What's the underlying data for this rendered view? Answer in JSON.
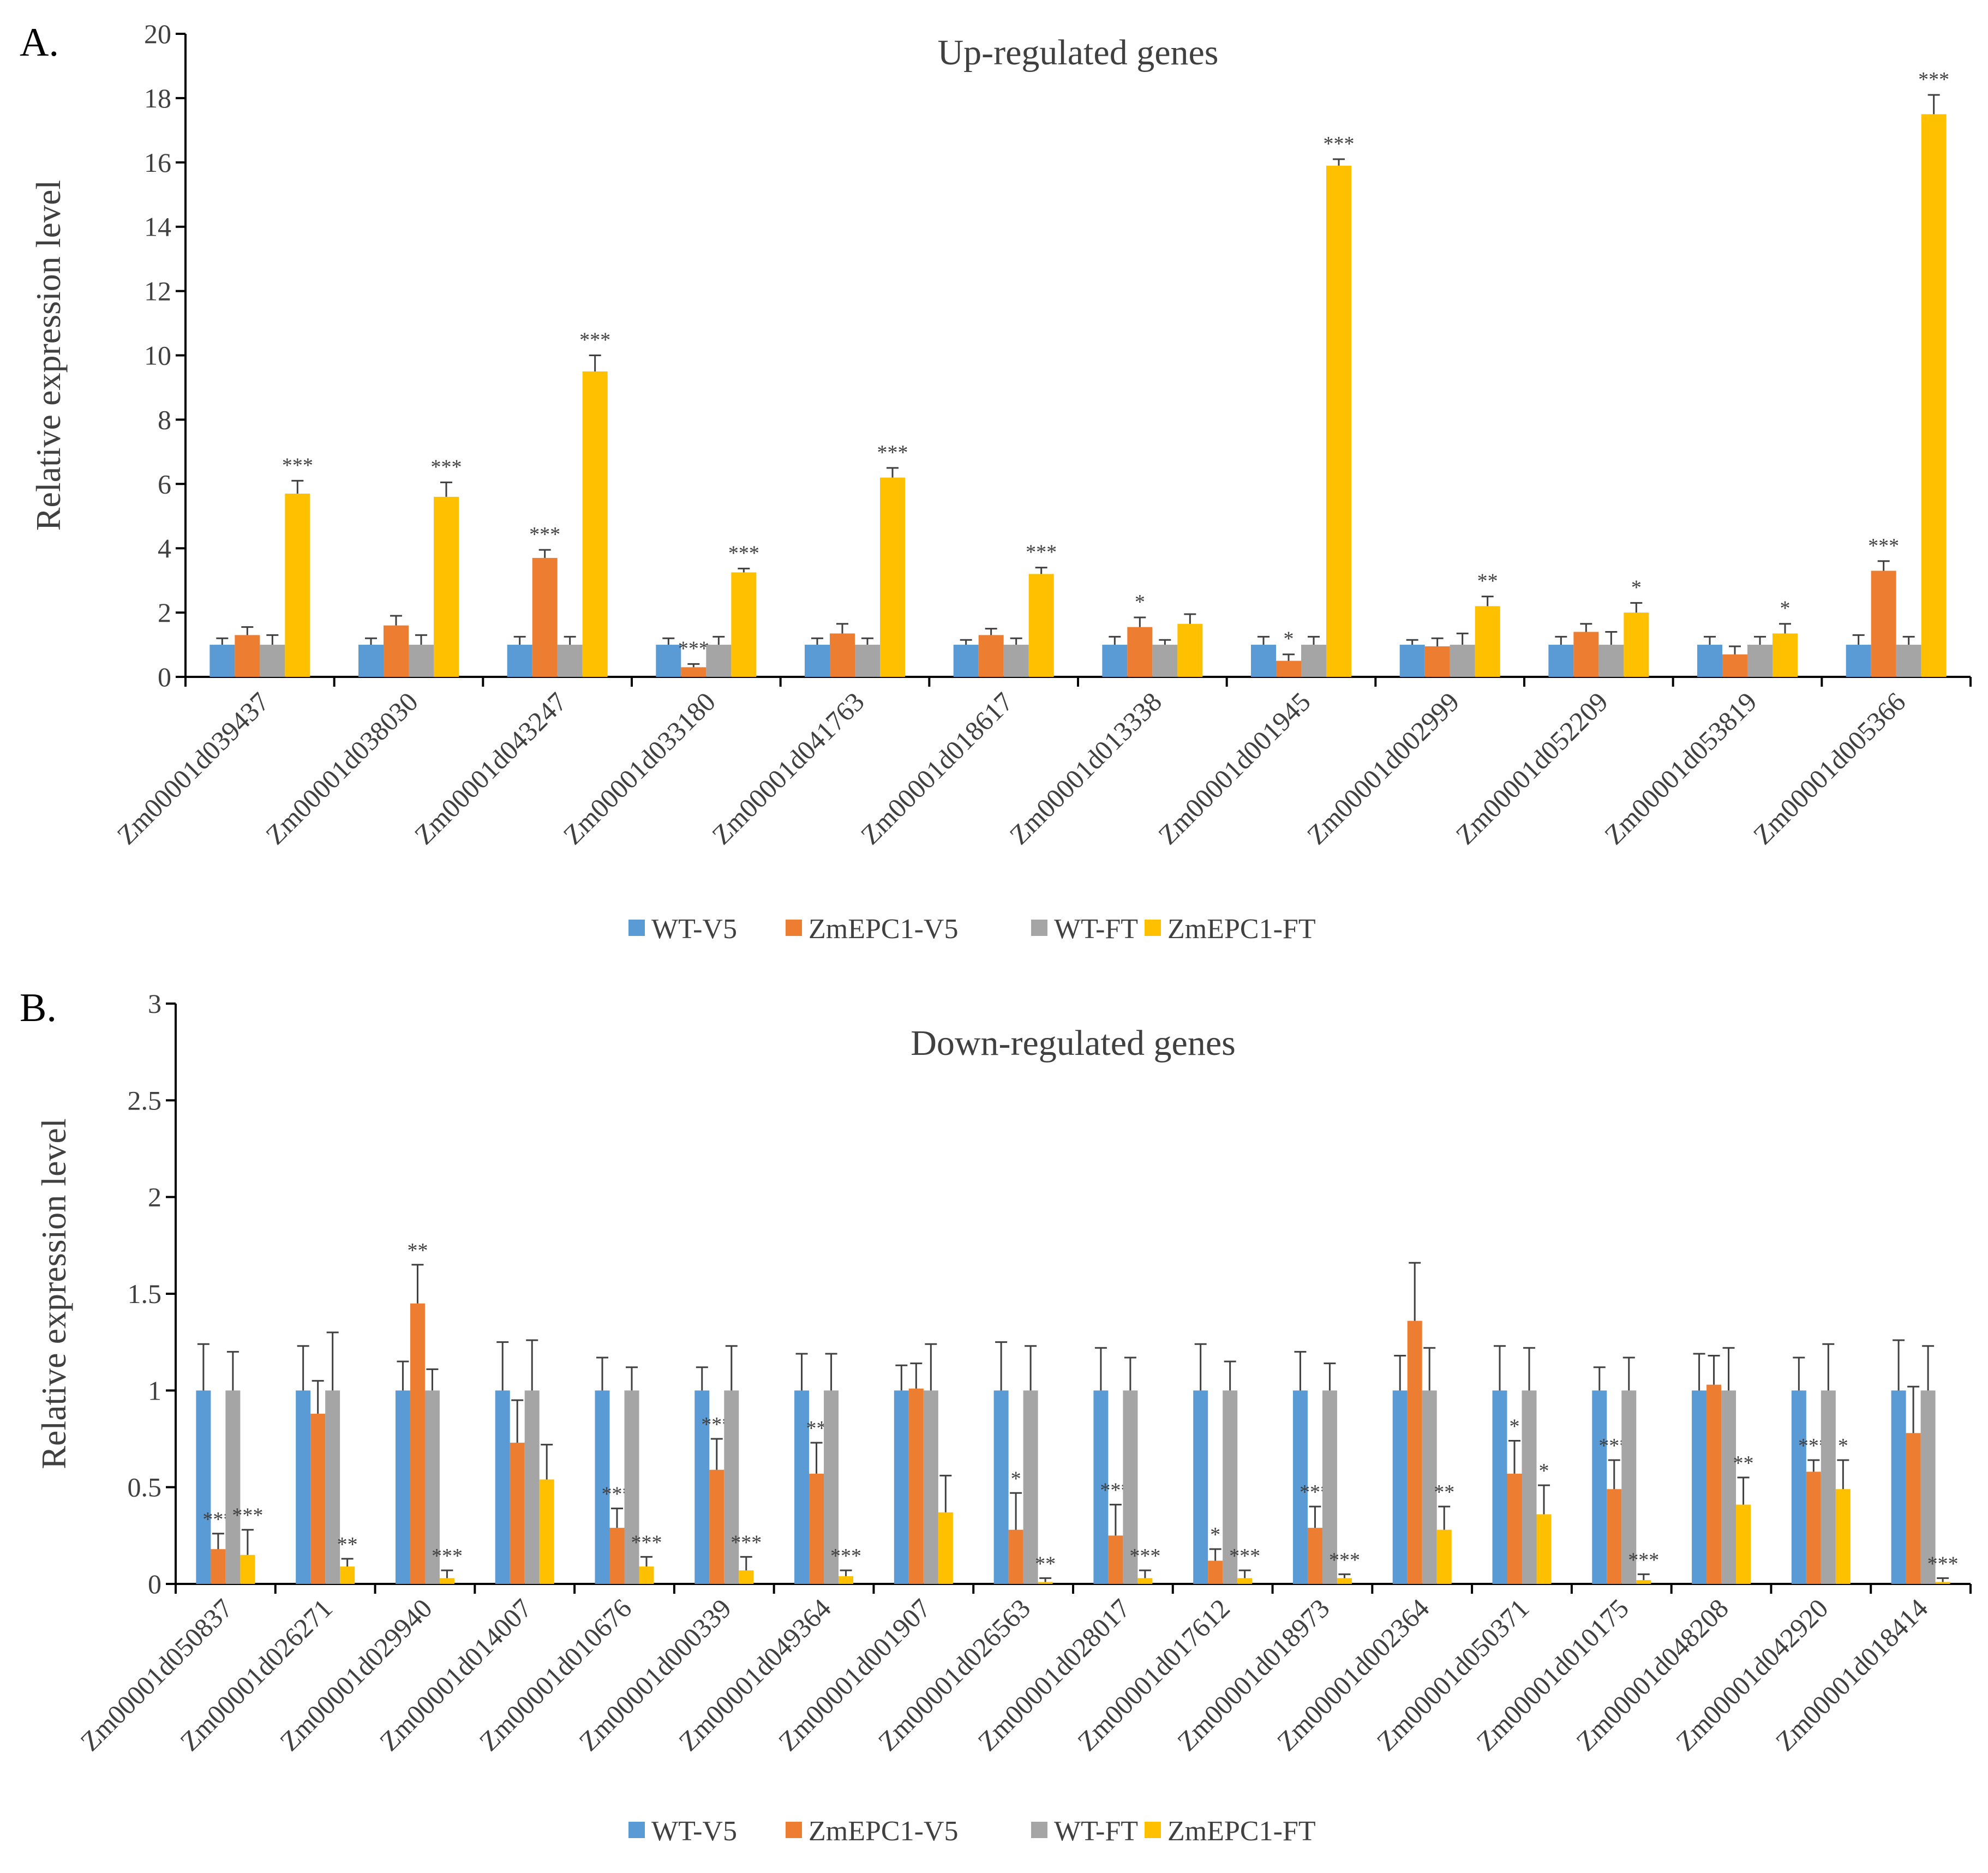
{
  "colors": {
    "WT-V5": "#5B9BD5",
    "ZmEPC1-V5": "#ED7D31",
    "WT-FT": "#A5A5A5",
    "ZmEPC1-FT": "#FFC000",
    "axis": "#000000",
    "text": "#404040"
  },
  "chart_data": [
    {
      "type": "bar",
      "panel_label": "A.",
      "title": "Up-regulated genes",
      "xlabel": "",
      "ylabel": "Relative expression level",
      "ylim": [
        0,
        20
      ],
      "yticks": [
        0,
        2,
        4,
        6,
        8,
        10,
        12,
        14,
        16,
        18,
        20
      ],
      "ytick_labels": [
        "0",
        "2",
        "4",
        "6",
        "8",
        "10",
        "12",
        "14",
        "16",
        "18",
        "20"
      ],
      "legend_position": "bottom",
      "categories": [
        "Zm00001d039437",
        "Zm00001d038030",
        "Zm00001d043247",
        "Zm00001d033180",
        "Zm00001d041763",
        "Zm00001d018617",
        "Zm00001d013338",
        "Zm00001d001945",
        "Zm00001d002999",
        "Zm00001d052209",
        "Zm00001d053819",
        "Zm00001d005366"
      ],
      "series": [
        {
          "name": "WT-V5",
          "values": [
            1,
            1,
            1,
            1,
            1,
            1,
            1,
            1,
            1,
            1,
            1,
            1
          ],
          "errors": [
            0.2,
            0.2,
            0.25,
            0.2,
            0.2,
            0.15,
            0.25,
            0.25,
            0.15,
            0.25,
            0.25,
            0.3
          ],
          "sig": [
            "",
            "",
            "",
            "",
            "",
            "",
            "",
            "",
            "",
            "",
            "",
            ""
          ]
        },
        {
          "name": "ZmEPC1-V5",
          "values": [
            1.3,
            1.6,
            3.7,
            0.3,
            1.35,
            1.3,
            1.55,
            0.5,
            0.95,
            1.4,
            0.7,
            3.3
          ],
          "errors": [
            0.25,
            0.3,
            0.25,
            0.1,
            0.3,
            0.2,
            0.3,
            0.2,
            0.25,
            0.25,
            0.25,
            0.3
          ],
          "sig": [
            "",
            "",
            "***",
            "***",
            "",
            "",
            "*",
            "*",
            "",
            "",
            "",
            "***"
          ]
        },
        {
          "name": "WT-FT",
          "values": [
            1,
            1,
            1,
            1,
            1,
            1,
            1,
            1,
            1,
            1,
            1,
            1
          ],
          "errors": [
            0.3,
            0.3,
            0.25,
            0.25,
            0.2,
            0.2,
            0.15,
            0.25,
            0.35,
            0.4,
            0.25,
            0.25
          ],
          "sig": [
            "",
            "",
            "",
            "",
            "",
            "",
            "",
            "",
            "",
            "",
            "",
            ""
          ]
        },
        {
          "name": "ZmEPC1-FT",
          "values": [
            5.7,
            5.6,
            9.5,
            3.25,
            6.2,
            3.2,
            1.65,
            15.9,
            2.2,
            2.0,
            1.35,
            17.5
          ],
          "errors": [
            0.4,
            0.45,
            0.5,
            0.12,
            0.3,
            0.2,
            0.3,
            0.2,
            0.3,
            0.3,
            0.3,
            0.6
          ],
          "sig": [
            "***",
            "***",
            "***",
            "***",
            "***",
            "***",
            "",
            "***",
            "**",
            "*",
            "*",
            "***"
          ]
        }
      ]
    },
    {
      "type": "bar",
      "panel_label": "B.",
      "title": "Down-regulated genes",
      "xlabel": "",
      "ylabel": "Relative expression level",
      "ylim": [
        0,
        3
      ],
      "yticks": [
        0,
        0.5,
        1,
        1.5,
        2,
        2.5,
        3
      ],
      "ytick_labels": [
        "0",
        "0.5",
        "1",
        "1.5",
        "2",
        "2.5",
        "3"
      ],
      "legend_position": "bottom",
      "categories": [
        "Zm00001d050837",
        "Zm00001d026271",
        "Zm00001d029940",
        "Zm00001d014007",
        "Zm00001d010676",
        "Zm00001d000339",
        "Zm00001d049364",
        "Zm00001d001907",
        "Zm00001d026563",
        "Zm00001d028017",
        "Zm00001d017612",
        "Zm00001d018973",
        "Zm00001d002364",
        "Zm00001d050371",
        "Zm00001d010175",
        "Zm00001d048208",
        "Zm00001d042920",
        "Zm00001d018414"
      ],
      "series": [
        {
          "name": "WT-V5",
          "values": [
            1,
            1,
            1,
            1,
            1,
            1,
            1,
            1,
            1,
            1,
            1,
            1,
            1,
            1,
            1,
            1,
            1,
            1
          ],
          "errors": [
            0.24,
            0.23,
            0.15,
            0.25,
            0.17,
            0.12,
            0.19,
            0.13,
            0.25,
            0.22,
            0.24,
            0.2,
            0.18,
            0.23,
            0.12,
            0.19,
            0.17,
            0.26
          ],
          "sig": [
            "",
            "",
            "",
            "",
            "",
            "",
            "",
            "",
            "",
            "",
            "",
            "",
            "",
            "",
            "",
            "",
            "",
            ""
          ]
        },
        {
          "name": "ZmEPC1-V5",
          "values": [
            0.18,
            0.88,
            1.45,
            0.73,
            0.29,
            0.59,
            0.57,
            1.01,
            0.28,
            0.25,
            0.12,
            0.29,
            1.36,
            0.57,
            0.49,
            1.03,
            0.58,
            0.78
          ],
          "errors": [
            0.08,
            0.17,
            0.2,
            0.22,
            0.1,
            0.16,
            0.16,
            0.13,
            0.19,
            0.16,
            0.06,
            0.11,
            0.3,
            0.17,
            0.15,
            0.15,
            0.06,
            0.24
          ],
          "sig": [
            "***",
            "",
            "**",
            "",
            "***",
            "***",
            "**",
            "",
            "*",
            "***",
            "*",
            "***",
            "",
            "*",
            "***",
            "",
            "***",
            ""
          ]
        },
        {
          "name": "WT-FT",
          "values": [
            1,
            1,
            1,
            1,
            1,
            1,
            1,
            1,
            1,
            1,
            1,
            1,
            1,
            1,
            1,
            1,
            1,
            1
          ],
          "errors": [
            0.2,
            0.3,
            0.11,
            0.26,
            0.12,
            0.23,
            0.19,
            0.24,
            0.23,
            0.17,
            0.15,
            0.14,
            0.22,
            0.22,
            0.17,
            0.22,
            0.24,
            0.23
          ],
          "sig": [
            "",
            "",
            "",
            "",
            "",
            "",
            "",
            "",
            "",
            "",
            "",
            "",
            "",
            "",
            "",
            "",
            "",
            ""
          ]
        },
        {
          "name": "ZmEPC1-FT",
          "values": [
            0.15,
            0.09,
            0.03,
            0.54,
            0.09,
            0.07,
            0.04,
            0.37,
            0.01,
            0.03,
            0.03,
            0.03,
            0.28,
            0.36,
            0.02,
            0.41,
            0.49,
            0.01
          ],
          "errors": [
            0.13,
            0.04,
            0.04,
            0.18,
            0.05,
            0.07,
            0.03,
            0.19,
            0.02,
            0.04,
            0.04,
            0.02,
            0.12,
            0.15,
            0.03,
            0.14,
            0.15,
            0.02
          ],
          "sig": [
            "***",
            "**",
            "***",
            "",
            "***",
            "***",
            "***",
            "",
            "**",
            "***",
            "***",
            "***",
            "**",
            "*",
            "***",
            "**",
            "*",
            "***"
          ]
        }
      ]
    }
  ]
}
